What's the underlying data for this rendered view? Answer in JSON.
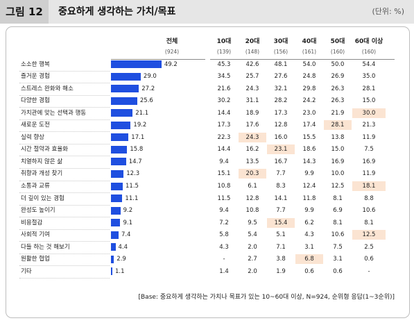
{
  "figure": {
    "label": "그림 12",
    "title": "중요하게 생각하는 가치/목표",
    "unit": "(단위: %)",
    "footnote": "[Base: 중요하게 생각하는 가치나 목표가 있는 10~60대 이상, N=924, 순위형 응답(1~3순위)]"
  },
  "chart_data": {
    "type": "bar",
    "orientation": "horizontal",
    "title": "중요하게 생각하는 가치/목표",
    "unit": "(단위: %)",
    "highlight_color": "#fbe4d2",
    "bar_color": "#1f4fe0",
    "columns": [
      {
        "label": "전체",
        "n": "(924)"
      },
      {
        "label": "10대",
        "n": "(139)"
      },
      {
        "label": "20대",
        "n": "(148)"
      },
      {
        "label": "30대",
        "n": "(156)"
      },
      {
        "label": "40대",
        "n": "(161)"
      },
      {
        "label": "50대",
        "n": "(160)"
      },
      {
        "label": "60대 이상",
        "n": "(160)"
      }
    ],
    "categories": [
      "소소한 행복",
      "즐거운 경험",
      "스트레스 완화와 해소",
      "다양한 경험",
      "가치관에 맞는 선택과 행동",
      "새로운 도전",
      "실력 향상",
      "시간 절약과 효율화",
      "치열하지 않은 삶",
      "취향과 개성 찾기",
      "소통과 교류",
      "더 깊이 있는 경험",
      "완성도 높이기",
      "비용절감",
      "사회적 기여",
      "다들 하는 것 해보기",
      "원활한 협업",
      "기타"
    ],
    "total": [
      49.2,
      29.0,
      27.2,
      25.6,
      21.1,
      19.2,
      17.1,
      15.8,
      14.7,
      12.3,
      11.5,
      11.1,
      9.2,
      9.1,
      7.4,
      4.4,
      2.9,
      1.1
    ],
    "total_labels": [
      "49.2",
      "29.0",
      "27.2",
      "25.6",
      "21.1",
      "19.2",
      "17.1",
      "15.8",
      "14.7",
      "12.3",
      "11.5",
      "11.1",
      "9.2",
      "9.1",
      "7.4",
      "4.4",
      "2.9",
      "1.1"
    ],
    "age_groups": [
      {
        "name": "10대",
        "values": [
          "45.3",
          "34.5",
          "21.6",
          "30.2",
          "14.4",
          "17.3",
          "22.3",
          "14.4",
          "9.4",
          "15.1",
          "10.8",
          "11.5",
          "9.4",
          "7.2",
          "5.8",
          "4.3",
          "-",
          "1.4"
        ],
        "highlight": [
          false,
          false,
          false,
          false,
          false,
          false,
          false,
          false,
          false,
          false,
          false,
          false,
          false,
          false,
          false,
          false,
          false,
          false
        ]
      },
      {
        "name": "20대",
        "values": [
          "42.6",
          "25.7",
          "24.3",
          "31.1",
          "18.9",
          "17.6",
          "24.3",
          "16.2",
          "13.5",
          "20.3",
          "6.1",
          "12.8",
          "10.8",
          "9.5",
          "5.4",
          "2.0",
          "2.7",
          "2.0"
        ],
        "highlight": [
          false,
          false,
          false,
          false,
          false,
          false,
          true,
          false,
          false,
          true,
          false,
          false,
          false,
          false,
          false,
          false,
          false,
          false
        ]
      },
      {
        "name": "30대",
        "values": [
          "48.1",
          "27.6",
          "32.1",
          "28.2",
          "17.3",
          "12.8",
          "16.0",
          "23.1",
          "16.7",
          "7.7",
          "8.3",
          "14.1",
          "7.7",
          "15.4",
          "5.1",
          "7.1",
          "3.8",
          "1.9"
        ],
        "highlight": [
          false,
          false,
          false,
          false,
          false,
          false,
          false,
          true,
          false,
          false,
          false,
          false,
          false,
          true,
          false,
          false,
          false,
          false
        ]
      },
      {
        "name": "40대",
        "values": [
          "54.0",
          "24.8",
          "29.8",
          "24.2",
          "23.0",
          "17.4",
          "15.5",
          "18.6",
          "14.3",
          "9.9",
          "12.4",
          "11.8",
          "9.9",
          "6.2",
          "4.3",
          "3.1",
          "6.8",
          "0.6"
        ],
        "highlight": [
          false,
          false,
          false,
          false,
          false,
          false,
          false,
          false,
          false,
          false,
          false,
          false,
          false,
          false,
          false,
          false,
          true,
          false
        ]
      },
      {
        "name": "50대",
        "values": [
          "50.0",
          "26.9",
          "26.3",
          "26.3",
          "21.9",
          "28.1",
          "13.8",
          "15.0",
          "16.9",
          "10.0",
          "12.5",
          "8.1",
          "6.9",
          "8.1",
          "10.6",
          "7.5",
          "3.1",
          "0.6"
        ],
        "highlight": [
          false,
          false,
          false,
          false,
          false,
          true,
          false,
          false,
          false,
          false,
          false,
          false,
          false,
          false,
          false,
          false,
          false,
          false
        ]
      },
      {
        "name": "60대 이상",
        "values": [
          "54.4",
          "35.0",
          "28.1",
          "15.0",
          "30.0",
          "21.3",
          "11.9",
          "7.5",
          "16.9",
          "11.9",
          "18.1",
          "8.8",
          "10.6",
          "8.1",
          "12.5",
          "2.5",
          "0.6",
          "-"
        ],
        "highlight": [
          false,
          false,
          false,
          false,
          true,
          false,
          false,
          false,
          false,
          false,
          true,
          false,
          false,
          false,
          true,
          false,
          false,
          false
        ]
      }
    ]
  }
}
